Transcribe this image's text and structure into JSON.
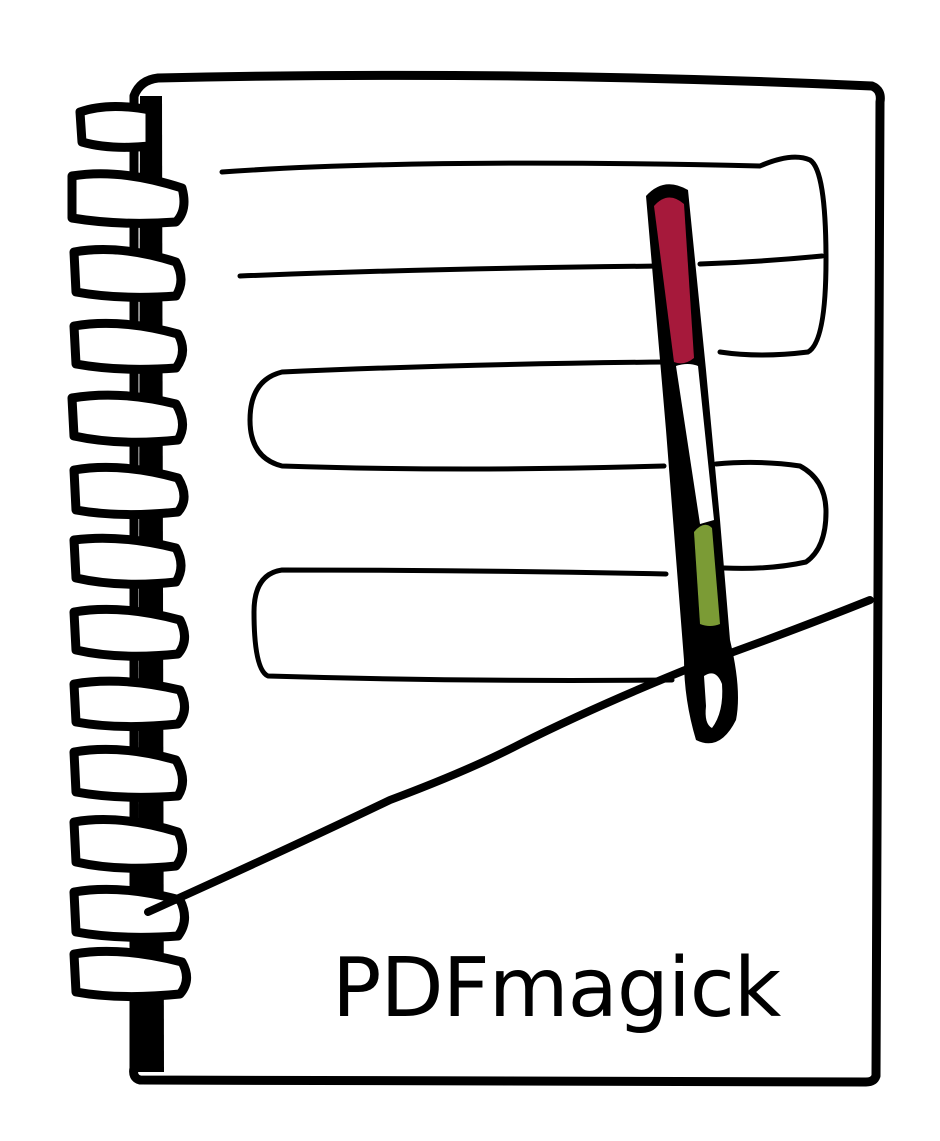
{
  "brand": {
    "name": "PDFmagick"
  },
  "colors": {
    "ink": "#000000",
    "paper": "#ffffff",
    "pen_cap": "#a6193b",
    "pen_grip": "#7b9b35"
  },
  "icons": {
    "logo": "spiral-notebook-with-pen-icon"
  }
}
